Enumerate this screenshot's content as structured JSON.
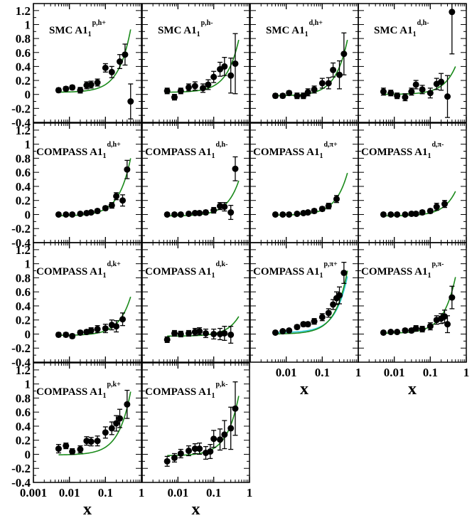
{
  "figure": {
    "x_axis_label": "x",
    "x_tick_labels": [
      "0.001",
      "0.01",
      "0.1",
      "1"
    ],
    "y_tick_labels": [
      "1.2",
      "1",
      "0.8",
      "0.6",
      "0.4",
      "0.2",
      "0",
      "-0.2",
      "-0.4"
    ],
    "colors": {
      "data": "#000000",
      "theory": "#1a8a1a",
      "theory_alt": "#33ccdd"
    }
  },
  "chart_data": [
    {
      "type": "scatter",
      "title": "SMC A1",
      "sup": "p,h+",
      "curve": [
        0.03,
        0.9
      ],
      "points": [
        [
          0.005,
          0.06,
          0.03
        ],
        [
          0.008,
          0.08,
          0.03
        ],
        [
          0.012,
          0.1,
          0.03
        ],
        [
          0.02,
          0.06,
          0.04
        ],
        [
          0.03,
          0.13,
          0.05
        ],
        [
          0.04,
          0.14,
          0.05
        ],
        [
          0.06,
          0.17,
          0.05
        ],
        [
          0.1,
          0.38,
          0.06
        ],
        [
          0.15,
          0.32,
          0.08
        ],
        [
          0.25,
          0.47,
          0.1
        ],
        [
          0.35,
          0.57,
          0.15
        ],
        [
          0.5,
          -0.1,
          0.25
        ]
      ]
    },
    {
      "type": "scatter",
      "title": "SMC A1",
      "sup": "p,h-",
      "curve": [
        0.03,
        0.75
      ],
      "points": [
        [
          0.005,
          0.05,
          0.04
        ],
        [
          0.008,
          -0.04,
          0.04
        ],
        [
          0.012,
          0.05,
          0.04
        ],
        [
          0.02,
          0.1,
          0.05
        ],
        [
          0.03,
          0.12,
          0.06
        ],
        [
          0.05,
          0.09,
          0.06
        ],
        [
          0.07,
          0.14,
          0.07
        ],
        [
          0.1,
          0.25,
          0.08
        ],
        [
          0.15,
          0.36,
          0.1
        ],
        [
          0.2,
          0.4,
          0.13
        ],
        [
          0.3,
          0.27,
          0.25
        ],
        [
          0.4,
          0.44,
          0.43
        ]
      ]
    },
    {
      "type": "scatter",
      "title": "SMC A1",
      "sup": "d,h+",
      "curve": [
        -0.02,
        0.8
      ],
      "points": [
        [
          0.005,
          -0.02,
          0.03
        ],
        [
          0.008,
          -0.02,
          0.03
        ],
        [
          0.012,
          0.02,
          0.03
        ],
        [
          0.02,
          -0.02,
          0.04
        ],
        [
          0.03,
          -0.02,
          0.04
        ],
        [
          0.04,
          0.03,
          0.05
        ],
        [
          0.06,
          0.07,
          0.05
        ],
        [
          0.1,
          0.16,
          0.07
        ],
        [
          0.15,
          0.16,
          0.08
        ],
        [
          0.2,
          0.35,
          0.1
        ],
        [
          0.3,
          0.28,
          0.2
        ],
        [
          0.4,
          0.58,
          0.3
        ]
      ]
    },
    {
      "type": "scatter",
      "title": "SMC A1",
      "sup": "d,h-",
      "curve": [
        0.0,
        0.4
      ],
      "points": [
        [
          0.005,
          0.04,
          0.05
        ],
        [
          0.008,
          0.02,
          0.04
        ],
        [
          0.012,
          -0.02,
          0.04
        ],
        [
          0.02,
          -0.04,
          0.05
        ],
        [
          0.03,
          0.04,
          0.05
        ],
        [
          0.04,
          0.14,
          0.06
        ],
        [
          0.06,
          0.07,
          0.06
        ],
        [
          0.1,
          0.02,
          0.07
        ],
        [
          0.15,
          0.15,
          0.08
        ],
        [
          0.2,
          0.18,
          0.12
        ],
        [
          0.3,
          -0.03,
          0.3
        ],
        [
          0.4,
          1.18,
          0.6
        ]
      ]
    },
    {
      "type": "scatter",
      "title": "COMPASS A1",
      "sup": "d,h+",
      "curve": [
        -0.02,
        0.82
      ],
      "points": [
        [
          0.005,
          0.0,
          0.02
        ],
        [
          0.008,
          0.0,
          0.02
        ],
        [
          0.012,
          0.0,
          0.02
        ],
        [
          0.02,
          0.01,
          0.02
        ],
        [
          0.03,
          0.02,
          0.02
        ],
        [
          0.04,
          0.03,
          0.02
        ],
        [
          0.06,
          0.05,
          0.03
        ],
        [
          0.1,
          0.09,
          0.03
        ],
        [
          0.15,
          0.13,
          0.04
        ],
        [
          0.2,
          0.26,
          0.05
        ],
        [
          0.3,
          0.2,
          0.08
        ],
        [
          0.4,
          0.64,
          0.13
        ]
      ]
    },
    {
      "type": "scatter",
      "title": "COMPASS A1",
      "sup": "d,h-",
      "curve": [
        -0.02,
        0.5
      ],
      "points": [
        [
          0.005,
          0.0,
          0.02
        ],
        [
          0.008,
          0.0,
          0.02
        ],
        [
          0.012,
          0.0,
          0.02
        ],
        [
          0.02,
          0.01,
          0.02
        ],
        [
          0.03,
          0.02,
          0.02
        ],
        [
          0.04,
          0.02,
          0.02
        ],
        [
          0.06,
          0.03,
          0.03
        ],
        [
          0.1,
          0.06,
          0.04
        ],
        [
          0.15,
          0.12,
          0.05
        ],
        [
          0.2,
          0.11,
          0.06
        ],
        [
          0.3,
          0.03,
          0.1
        ],
        [
          0.4,
          0.65,
          0.17
        ]
      ]
    },
    {
      "type": "scatter",
      "title": "COMPASS A1",
      "sup": "d,π+",
      "curve": [
        -0.01,
        0.6
      ],
      "points": [
        [
          0.005,
          0.0,
          0.02
        ],
        [
          0.008,
          0.0,
          0.02
        ],
        [
          0.012,
          0.0,
          0.02
        ],
        [
          0.02,
          0.01,
          0.02
        ],
        [
          0.03,
          0.02,
          0.02
        ],
        [
          0.04,
          0.03,
          0.02
        ],
        [
          0.06,
          0.05,
          0.03
        ],
        [
          0.1,
          0.08,
          0.03
        ],
        [
          0.15,
          0.12,
          0.04
        ],
        [
          0.25,
          0.22,
          0.05
        ]
      ]
    },
    {
      "type": "scatter",
      "title": "COMPASS A1",
      "sup": "d,π-",
      "curve": [
        -0.02,
        0.35
      ],
      "points": [
        [
          0.005,
          0.0,
          0.02
        ],
        [
          0.008,
          0.0,
          0.02
        ],
        [
          0.012,
          0.0,
          0.02
        ],
        [
          0.02,
          0.0,
          0.02
        ],
        [
          0.03,
          0.01,
          0.02
        ],
        [
          0.04,
          0.01,
          0.02
        ],
        [
          0.06,
          0.03,
          0.03
        ],
        [
          0.1,
          0.05,
          0.03
        ],
        [
          0.15,
          0.11,
          0.05
        ],
        [
          0.25,
          0.15,
          0.05
        ]
      ]
    },
    {
      "type": "scatter",
      "title": "COMPASS A1",
      "sup": "d,k+",
      "curve": [
        -0.02,
        0.55
      ],
      "points": [
        [
          0.005,
          -0.01,
          0.03
        ],
        [
          0.008,
          -0.01,
          0.03
        ],
        [
          0.012,
          -0.03,
          0.03
        ],
        [
          0.02,
          0.02,
          0.03
        ],
        [
          0.03,
          0.03,
          0.03
        ],
        [
          0.04,
          0.05,
          0.04
        ],
        [
          0.06,
          0.07,
          0.05
        ],
        [
          0.1,
          0.08,
          0.06
        ],
        [
          0.15,
          0.13,
          0.07
        ],
        [
          0.2,
          0.11,
          0.08
        ],
        [
          0.3,
          0.21,
          0.09
        ]
      ]
    },
    {
      "type": "scatter",
      "title": "COMPASS A1",
      "sup": "d,k-",
      "curve": [
        -0.03,
        0.28
      ],
      "points": [
        [
          0.005,
          -0.08,
          0.04
        ],
        [
          0.008,
          0.01,
          0.04
        ],
        [
          0.012,
          0.0,
          0.04
        ],
        [
          0.02,
          0.01,
          0.04
        ],
        [
          0.03,
          0.03,
          0.05
        ],
        [
          0.04,
          0.04,
          0.05
        ],
        [
          0.06,
          0.01,
          0.06
        ],
        [
          0.1,
          0.0,
          0.07
        ],
        [
          0.15,
          0.0,
          0.08
        ],
        [
          0.2,
          0.01,
          0.1
        ],
        [
          0.3,
          -0.01,
          0.12
        ]
      ]
    },
    {
      "type": "scatter",
      "title": "COMPASS A1",
      "sup": "p,π+",
      "curve": [
        0.0,
        0.9
      ],
      "alt_curve": [
        0.02,
        0.8
      ],
      "points": [
        [
          0.005,
          0.02,
          0.02
        ],
        [
          0.008,
          0.04,
          0.02
        ],
        [
          0.012,
          0.05,
          0.02
        ],
        [
          0.02,
          0.1,
          0.03
        ],
        [
          0.03,
          0.14,
          0.03
        ],
        [
          0.04,
          0.14,
          0.03
        ],
        [
          0.06,
          0.18,
          0.04
        ],
        [
          0.1,
          0.24,
          0.05
        ],
        [
          0.15,
          0.3,
          0.06
        ],
        [
          0.2,
          0.42,
          0.07
        ],
        [
          0.25,
          0.51,
          0.09
        ],
        [
          0.3,
          0.55,
          0.12
        ],
        [
          0.4,
          0.87,
          0.15
        ]
      ]
    },
    {
      "type": "scatter",
      "title": "COMPASS A1",
      "sup": "p,π-",
      "curve": [
        0.01,
        0.8
      ],
      "points": [
        [
          0.005,
          0.02,
          0.02
        ],
        [
          0.008,
          0.03,
          0.02
        ],
        [
          0.012,
          0.03,
          0.02
        ],
        [
          0.02,
          0.05,
          0.03
        ],
        [
          0.03,
          0.05,
          0.03
        ],
        [
          0.04,
          0.08,
          0.04
        ],
        [
          0.06,
          0.07,
          0.04
        ],
        [
          0.1,
          0.11,
          0.05
        ],
        [
          0.15,
          0.2,
          0.06
        ],
        [
          0.2,
          0.22,
          0.07
        ],
        [
          0.25,
          0.25,
          0.09
        ],
        [
          0.3,
          0.14,
          0.12
        ],
        [
          0.4,
          0.52,
          0.16
        ]
      ]
    },
    {
      "type": "scatter",
      "title": "COMPASS A1",
      "sup": "p,k+",
      "curve": [
        -0.01,
        0.9
      ],
      "points": [
        [
          0.005,
          0.08,
          0.06
        ],
        [
          0.008,
          0.12,
          0.04
        ],
        [
          0.012,
          0.04,
          0.04
        ],
        [
          0.02,
          0.07,
          0.05
        ],
        [
          0.03,
          0.19,
          0.06
        ],
        [
          0.04,
          0.18,
          0.06
        ],
        [
          0.06,
          0.19,
          0.07
        ],
        [
          0.1,
          0.31,
          0.08
        ],
        [
          0.15,
          0.37,
          0.09
        ],
        [
          0.2,
          0.44,
          0.11
        ],
        [
          0.25,
          0.51,
          0.13
        ],
        [
          0.4,
          0.71,
          0.2
        ]
      ]
    },
    {
      "type": "scatter",
      "title": "COMPASS A1",
      "sup": "p,k-",
      "curve": [
        -0.02,
        0.85
      ],
      "points": [
        [
          0.005,
          -0.1,
          0.07
        ],
        [
          0.008,
          -0.05,
          0.06
        ],
        [
          0.012,
          0.01,
          0.06
        ],
        [
          0.02,
          0.05,
          0.07
        ],
        [
          0.03,
          0.08,
          0.07
        ],
        [
          0.04,
          0.08,
          0.08
        ],
        [
          0.06,
          0.02,
          0.09
        ],
        [
          0.08,
          0.04,
          0.1
        ],
        [
          0.1,
          0.22,
          0.12
        ],
        [
          0.15,
          0.21,
          0.15
        ],
        [
          0.2,
          0.28,
          0.2
        ],
        [
          0.3,
          0.37,
          0.3
        ],
        [
          0.4,
          0.65,
          0.38
        ]
      ]
    }
  ]
}
